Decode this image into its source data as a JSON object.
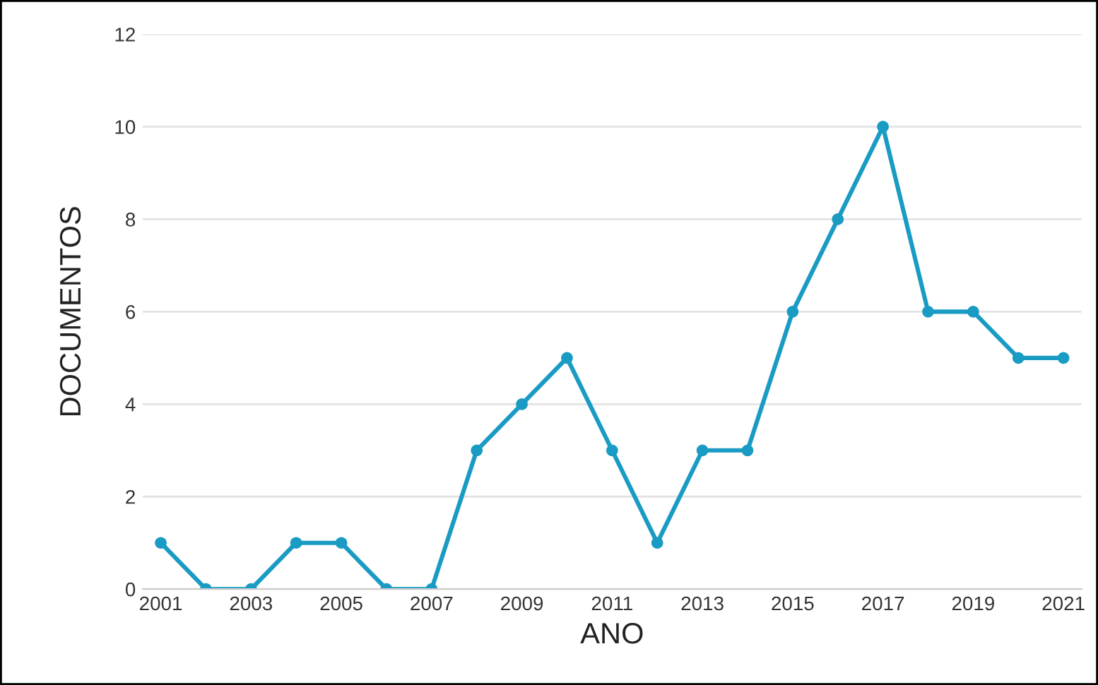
{
  "chart_data": {
    "type": "line",
    "xlabel": "ANO",
    "ylabel": "DOCUMENTOS",
    "x": [
      2001,
      2002,
      2003,
      2004,
      2005,
      2006,
      2007,
      2008,
      2009,
      2010,
      2011,
      2012,
      2013,
      2014,
      2015,
      2016,
      2017,
      2018,
      2019,
      2020,
      2021
    ],
    "series": [
      {
        "color": "#1a9bc4",
        "values": [
          1,
          0,
          0,
          1,
          1,
          0,
          0,
          3,
          4,
          5,
          3,
          1,
          3,
          3,
          6,
          8,
          10,
          6,
          6,
          5,
          5
        ]
      }
    ],
    "xlim": [
      2000.6,
      2021.4
    ],
    "xticks": [
      2001,
      2003,
      2005,
      2007,
      2009,
      2011,
      2013,
      2015,
      2017,
      2019,
      2021
    ],
    "ylim": [
      0,
      12
    ],
    "yticks": [
      0,
      2,
      4,
      6,
      8,
      10,
      12
    ],
    "grid": "y",
    "marker": "circle",
    "line_style": "solid"
  }
}
